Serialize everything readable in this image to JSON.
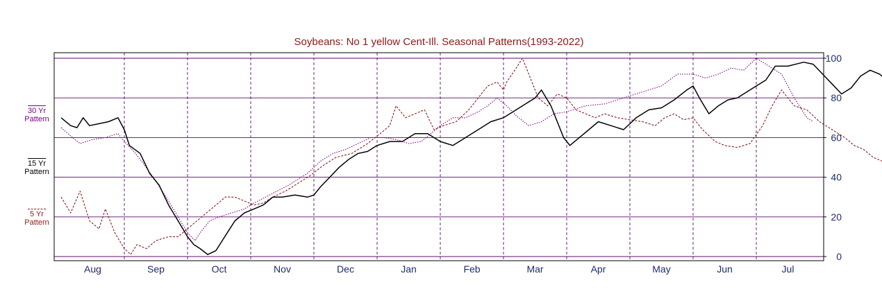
{
  "chart_data": {
    "type": "line",
    "title": "Soybeans: No 1 yellow Cent-Ill. Seasonal Patterns(1993-2022)",
    "categories": [
      "Aug",
      "Sep",
      "Oct",
      "Nov",
      "Dec",
      "Jan",
      "Feb",
      "Mar",
      "Apr",
      "May",
      "Jun",
      "Jul"
    ],
    "y_ticks": [
      100,
      80,
      60,
      40,
      20,
      0
    ],
    "ylim": [
      0,
      100
    ],
    "y_axis_side": "right",
    "grid": true,
    "legend_placement": "left",
    "series": [
      {
        "name": "30 Yr Pattern",
        "color": "#800080",
        "style": "dotted",
        "points": [
          [
            0,
            65
          ],
          [
            0.18,
            60
          ],
          [
            0.3,
            57
          ],
          [
            0.5,
            59
          ],
          [
            0.7,
            60
          ],
          [
            0.9,
            62
          ],
          [
            1.0,
            58
          ],
          [
            1.15,
            53
          ],
          [
            1.3,
            47
          ],
          [
            1.5,
            38
          ],
          [
            1.7,
            28
          ],
          [
            1.85,
            20
          ],
          [
            2.0,
            12
          ],
          [
            2.12,
            8
          ],
          [
            2.2,
            12
          ],
          [
            2.35,
            18
          ],
          [
            2.5,
            20
          ],
          [
            2.7,
            22
          ],
          [
            2.9,
            24
          ],
          [
            3.05,
            27
          ],
          [
            3.3,
            31
          ],
          [
            3.6,
            36
          ],
          [
            3.9,
            42
          ],
          [
            4.1,
            48
          ],
          [
            4.3,
            52
          ],
          [
            4.5,
            54
          ],
          [
            4.7,
            57
          ],
          [
            4.9,
            60
          ],
          [
            5.1,
            60
          ],
          [
            5.3,
            59
          ],
          [
            5.5,
            57
          ],
          [
            5.7,
            58
          ],
          [
            5.85,
            62
          ],
          [
            6.0,
            66
          ],
          [
            6.2,
            70
          ],
          [
            6.4,
            70
          ],
          [
            6.6,
            73
          ],
          [
            6.75,
            76
          ],
          [
            6.9,
            80
          ],
          [
            7.05,
            76
          ],
          [
            7.2,
            71
          ],
          [
            7.4,
            66
          ],
          [
            7.6,
            68
          ],
          [
            7.8,
            72
          ],
          [
            8.0,
            73
          ],
          [
            8.3,
            76
          ],
          [
            8.6,
            77
          ],
          [
            8.8,
            79
          ],
          [
            9.0,
            81
          ],
          [
            9.2,
            83
          ],
          [
            9.5,
            86
          ],
          [
            9.75,
            92
          ],
          [
            10.0,
            92
          ],
          [
            10.2,
            90
          ],
          [
            10.4,
            92
          ],
          [
            10.6,
            95
          ],
          [
            10.8,
            94
          ],
          [
            11.0,
            100
          ],
          [
            11.2,
            96
          ],
          [
            11.4,
            92
          ],
          [
            11.6,
            80
          ],
          [
            11.8,
            70
          ],
          [
            11.9,
            68
          ]
        ]
      },
      {
        "name": "15 Yr Pattern",
        "color": "#000000",
        "style": "solid",
        "points": [
          [
            0,
            70
          ],
          [
            0.15,
            66
          ],
          [
            0.25,
            65
          ],
          [
            0.35,
            70
          ],
          [
            0.45,
            66
          ],
          [
            0.6,
            67
          ],
          [
            0.75,
            68
          ],
          [
            0.9,
            70
          ],
          [
            1.0,
            64
          ],
          [
            1.08,
            56
          ],
          [
            1.25,
            52
          ],
          [
            1.4,
            42
          ],
          [
            1.55,
            36
          ],
          [
            1.7,
            26
          ],
          [
            1.85,
            18
          ],
          [
            2.0,
            10
          ],
          [
            2.1,
            6
          ],
          [
            2.2,
            4
          ],
          [
            2.32,
            1
          ],
          [
            2.45,
            3
          ],
          [
            2.55,
            8
          ],
          [
            2.65,
            13
          ],
          [
            2.75,
            18
          ],
          [
            2.9,
            22
          ],
          [
            3.05,
            24
          ],
          [
            3.2,
            26
          ],
          [
            3.35,
            30
          ],
          [
            3.5,
            30
          ],
          [
            3.7,
            31
          ],
          [
            3.9,
            30
          ],
          [
            4.0,
            31
          ],
          [
            4.1,
            35
          ],
          [
            4.25,
            40
          ],
          [
            4.4,
            45
          ],
          [
            4.55,
            49
          ],
          [
            4.7,
            52
          ],
          [
            4.85,
            53
          ],
          [
            5.0,
            56
          ],
          [
            5.2,
            58
          ],
          [
            5.4,
            58
          ],
          [
            5.6,
            62
          ],
          [
            5.8,
            62
          ],
          [
            6.0,
            58
          ],
          [
            6.2,
            56
          ],
          [
            6.4,
            60
          ],
          [
            6.6,
            64
          ],
          [
            6.8,
            68
          ],
          [
            7.0,
            70
          ],
          [
            7.2,
            74
          ],
          [
            7.35,
            77
          ],
          [
            7.5,
            80
          ],
          [
            7.6,
            84
          ],
          [
            7.75,
            76
          ],
          [
            7.85,
            68
          ],
          [
            7.95,
            60
          ],
          [
            8.05,
            56
          ],
          [
            8.2,
            60
          ],
          [
            8.35,
            64
          ],
          [
            8.5,
            68
          ],
          [
            8.7,
            66
          ],
          [
            8.9,
            64
          ],
          [
            9.1,
            70
          ],
          [
            9.3,
            74
          ],
          [
            9.5,
            75
          ],
          [
            9.7,
            79
          ],
          [
            9.9,
            84
          ],
          [
            10.0,
            86
          ],
          [
            10.1,
            80
          ],
          [
            10.25,
            72
          ],
          [
            10.4,
            76
          ],
          [
            10.55,
            79
          ],
          [
            10.7,
            80
          ],
          [
            10.85,
            83
          ],
          [
            11.0,
            86
          ],
          [
            11.15,
            89
          ],
          [
            11.3,
            96
          ],
          [
            11.5,
            96
          ],
          [
            11.75,
            98
          ],
          [
            11.9,
            97
          ],
          [
            12.05,
            92
          ],
          [
            12.2,
            87
          ],
          [
            12.35,
            82
          ],
          [
            12.5,
            85
          ],
          [
            12.65,
            91
          ],
          [
            12.8,
            94
          ],
          [
            12.95,
            92
          ],
          [
            13.1,
            88
          ],
          [
            13.25,
            88
          ],
          [
            13.4,
            89
          ],
          [
            13.55,
            82
          ],
          [
            13.7,
            72
          ],
          [
            13.8,
            77
          ],
          [
            13.9,
            80
          ],
          [
            14.0,
            80
          ]
        ]
      },
      {
        "name": "5 Yr Pattern",
        "color": "#8b1a1a",
        "style": "dashed",
        "points": [
          [
            0,
            30
          ],
          [
            0.15,
            22
          ],
          [
            0.3,
            33
          ],
          [
            0.45,
            18
          ],
          [
            0.6,
            14
          ],
          [
            0.7,
            24
          ],
          [
            0.85,
            12
          ],
          [
            1.0,
            4
          ],
          [
            1.1,
            1
          ],
          [
            1.2,
            6
          ],
          [
            1.35,
            4
          ],
          [
            1.5,
            8
          ],
          [
            1.7,
            10
          ],
          [
            1.85,
            10
          ],
          [
            2.0,
            14
          ],
          [
            2.15,
            18
          ],
          [
            2.3,
            22
          ],
          [
            2.45,
            26
          ],
          [
            2.6,
            30
          ],
          [
            2.75,
            30
          ],
          [
            2.9,
            28
          ],
          [
            3.05,
            26
          ],
          [
            3.2,
            27
          ],
          [
            3.35,
            30
          ],
          [
            3.55,
            33
          ],
          [
            3.75,
            37
          ],
          [
            3.95,
            41
          ],
          [
            4.15,
            46
          ],
          [
            4.35,
            50
          ],
          [
            4.6,
            52
          ],
          [
            4.85,
            57
          ],
          [
            5.05,
            62
          ],
          [
            5.2,
            66
          ],
          [
            5.3,
            76
          ],
          [
            5.45,
            70
          ],
          [
            5.6,
            72
          ],
          [
            5.75,
            74
          ],
          [
            5.9,
            64
          ],
          [
            6.05,
            66
          ],
          [
            6.25,
            68
          ],
          [
            6.45,
            74
          ],
          [
            6.6,
            80
          ],
          [
            6.75,
            86
          ],
          [
            6.9,
            88
          ],
          [
            7.0,
            84
          ],
          [
            7.05,
            88
          ],
          [
            7.2,
            95
          ],
          [
            7.3,
            100
          ],
          [
            7.4,
            92
          ],
          [
            7.55,
            80
          ],
          [
            7.7,
            76
          ],
          [
            7.85,
            82
          ],
          [
            8.0,
            80
          ],
          [
            8.15,
            74
          ],
          [
            8.3,
            72
          ],
          [
            8.45,
            70
          ],
          [
            8.6,
            72
          ],
          [
            8.8,
            70
          ],
          [
            9.0,
            69
          ],
          [
            9.2,
            68
          ],
          [
            9.4,
            66
          ],
          [
            9.55,
            70
          ],
          [
            9.7,
            72
          ],
          [
            9.85,
            69
          ],
          [
            10.0,
            70
          ],
          [
            10.15,
            64
          ],
          [
            10.35,
            58
          ],
          [
            10.5,
            56
          ],
          [
            10.7,
            55
          ],
          [
            10.9,
            57
          ],
          [
            11.1,
            66
          ],
          [
            11.25,
            76
          ],
          [
            11.4,
            84
          ],
          [
            11.6,
            76
          ],
          [
            11.8,
            74
          ],
          [
            12.0,
            68
          ],
          [
            12.2,
            64
          ],
          [
            12.4,
            60
          ],
          [
            12.55,
            56
          ],
          [
            12.7,
            54
          ],
          [
            12.85,
            50
          ],
          [
            13.0,
            48
          ],
          [
            13.2,
            50
          ],
          [
            13.4,
            54
          ],
          [
            13.6,
            56
          ],
          [
            13.75,
            60
          ],
          [
            13.9,
            62
          ],
          [
            14.0,
            60
          ]
        ]
      }
    ]
  },
  "legend": [
    {
      "label_line1": "30 Yr",
      "label_line2": "Pattern",
      "color": "#800080"
    },
    {
      "label_line1": "15 Yr",
      "label_line2": "Pattern",
      "color": "#000000"
    },
    {
      "label_line1": "5 Yr",
      "label_line2": "Pattern",
      "color": "#8b1a1a"
    }
  ],
  "colors": {
    "title": "#8b1a1a",
    "axis_text": "#1f2a6e",
    "gridline": "#5a0a6e",
    "frame": "#000000"
  }
}
